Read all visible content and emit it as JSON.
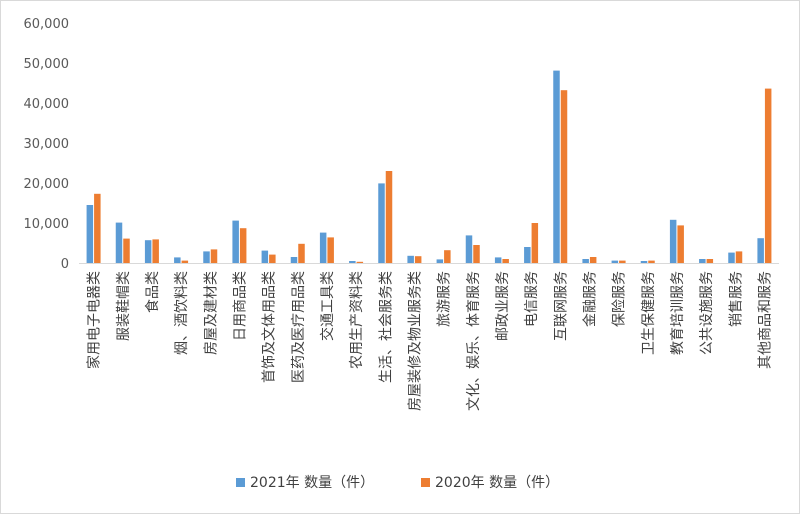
{
  "chart_data": {
    "type": "bar",
    "title": "",
    "xlabel": "",
    "ylabel": "",
    "ylim": [
      0,
      60000
    ],
    "yticks": [
      0,
      10000,
      20000,
      30000,
      40000,
      50000,
      60000
    ],
    "ytick_labels": [
      "0",
      "10,000",
      "20,000",
      "30,000",
      "40,000",
      "50,000",
      "60,000"
    ],
    "grid": false,
    "legend_position": "bottom",
    "categories": [
      "家用电子电器类",
      "服装鞋帽类",
      "食品类",
      "烟、酒饮料类",
      "房屋及建材类",
      "日用商品类",
      "首饰及文体用品类",
      "医药及医疗用品类",
      "交通工具类",
      "农用生产资料类",
      "生活、社会服务类",
      "房屋装修及物业服务类",
      "旅游服务",
      "文化、娱乐、体育服务",
      "邮政业服务",
      "电信服务",
      "互联网服务",
      "金融服务",
      "保险服务",
      "卫生保健服务",
      "教育培训服务",
      "公共设施服务",
      "销售服务",
      "其他商品和服务"
    ],
    "series": [
      {
        "name": "2021年 数量（件）",
        "color": "#5b9bd5",
        "values": [
          14500,
          10100,
          5700,
          1400,
          2900,
          10600,
          3100,
          1500,
          7600,
          500,
          19900,
          1800,
          900,
          6900,
          1400,
          4000,
          48100,
          1000,
          600,
          500,
          10800,
          1000,
          2600,
          6200
        ]
      },
      {
        "name": "2020年 数量（件）",
        "color": "#ed7d31",
        "values": [
          17300,
          6100,
          5900,
          600,
          3400,
          8700,
          2100,
          4800,
          6400,
          300,
          23000,
          1700,
          3200,
          4500,
          1000,
          10000,
          43200,
          1500,
          600,
          600,
          9400,
          1000,
          2900,
          43600
        ]
      }
    ]
  }
}
